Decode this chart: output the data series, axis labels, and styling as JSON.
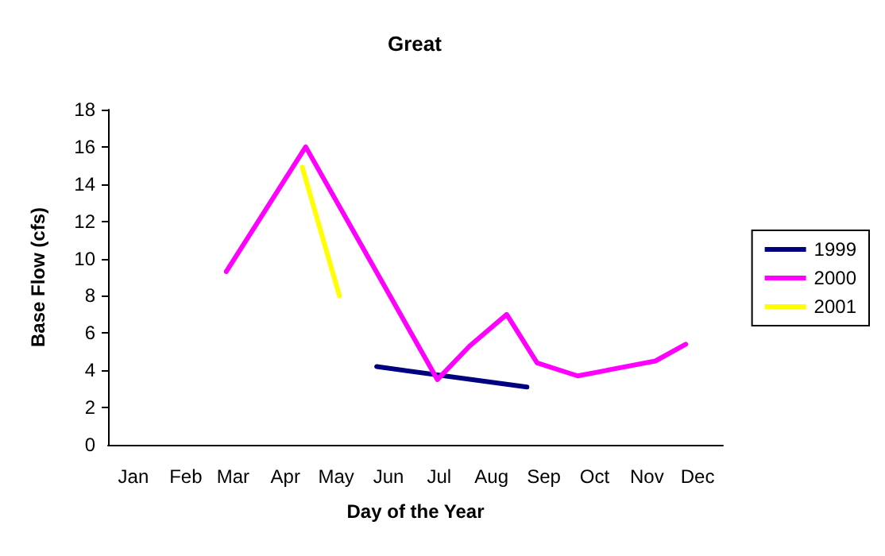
{
  "chart_data": {
    "type": "line",
    "title": "Great",
    "xlabel": "Day of the Year",
    "ylabel": "Base Flow (cfs)",
    "xlim": [
      "--01-01",
      "--12-31"
    ],
    "xticks": [
      {
        "value": "--01-16",
        "label": "Jan"
      },
      {
        "value": "--02-16",
        "label": "Feb"
      },
      {
        "value": "--03-16",
        "label": "Mar"
      },
      {
        "value": "--04-16",
        "label": "Apr"
      },
      {
        "value": "--05-16",
        "label": "May"
      },
      {
        "value": "--06-16",
        "label": "Jun"
      },
      {
        "value": "--07-16",
        "label": "Jul"
      },
      {
        "value": "--08-16",
        "label": "Aug"
      },
      {
        "value": "--09-16",
        "label": "Sep"
      },
      {
        "value": "--10-16",
        "label": "Oct"
      },
      {
        "value": "--11-16",
        "label": "Nov"
      },
      {
        "value": "--12-16",
        "label": "Dec"
      }
    ],
    "ylim": [
      0,
      18
    ],
    "yticks": [
      0,
      2,
      4,
      6,
      8,
      10,
      12,
      14,
      16,
      18
    ],
    "series": [
      {
        "name": "1999",
        "color": "#000080",
        "x": [
          "--06-09",
          "--09-06"
        ],
        "values": [
          4.2,
          3.1
        ]
      },
      {
        "name": "2000",
        "color": "#ff00ff",
        "x": [
          "--03-12",
          "--04-28",
          "--07-15",
          "--08-03",
          "--08-25",
          "--09-12",
          "--10-06",
          "--11-21",
          "--12-09"
        ],
        "values": [
          9.3,
          16,
          3.5,
          5.3,
          7,
          4.4,
          3.7,
          4.5,
          5.4
        ]
      },
      {
        "name": "2001",
        "color": "#ffff00",
        "x": [
          "--04-26",
          "--05-18"
        ],
        "values": [
          14.9,
          8
        ]
      }
    ],
    "grid": false,
    "legend": "right",
    "marker": "none",
    "line_style": "solid"
  }
}
